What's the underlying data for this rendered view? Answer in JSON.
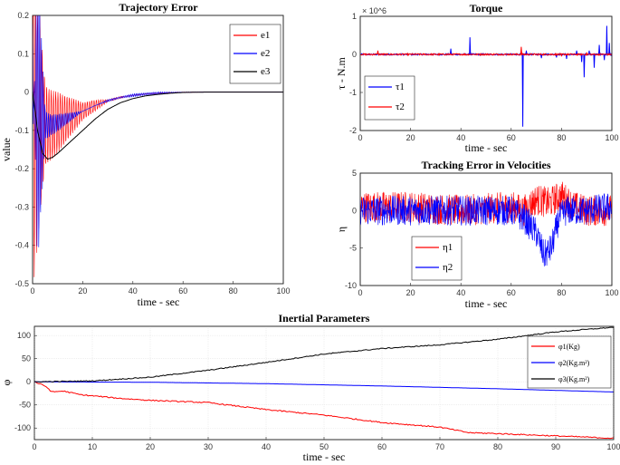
{
  "chart_data": [
    {
      "type": "line",
      "title": "Trajectory Error",
      "xlabel": "time - sec",
      "ylabel": "value",
      "xlim": [
        0,
        100
      ],
      "ylim": [
        -0.5,
        0.2
      ],
      "xticks": [
        "0",
        "20",
        "40",
        "60",
        "80",
        "100"
      ],
      "yticks": [
        "0.2",
        "0.1",
        "0",
        "-0.1",
        "-0.2",
        "-0.3",
        "-0.4",
        "-0.5"
      ],
      "legend_position": "top-right",
      "series": [
        {
          "name": "e1",
          "color": "#ff0000",
          "behavior": "damped oscillation",
          "points": [
            [
              0,
              -0.46
            ],
            [
              5,
              -0.18
            ],
            [
              10,
              -0.15
            ],
            [
              20,
              -0.07
            ],
            [
              30,
              -0.025
            ],
            [
              40,
              -0.008
            ],
            [
              50,
              -0.002
            ],
            [
              60,
              0
            ],
            [
              100,
              0
            ]
          ]
        },
        {
          "name": "e2",
          "color": "#0000ff",
          "behavior": "damped oscillation",
          "points": [
            [
              0,
              0.16
            ],
            [
              2,
              -0.42
            ],
            [
              5,
              -0.12
            ],
            [
              10,
              -0.1
            ],
            [
              20,
              -0.05
            ],
            [
              30,
              -0.02
            ],
            [
              40,
              -0.005
            ],
            [
              50,
              0
            ],
            [
              100,
              0
            ]
          ]
        },
        {
          "name": "e3",
          "color": "#000000",
          "points": [
            [
              0,
              0
            ],
            [
              2,
              -0.1
            ],
            [
              4,
              -0.16
            ],
            [
              6,
              -0.175
            ],
            [
              8,
              -0.17
            ],
            [
              10,
              -0.16
            ],
            [
              15,
              -0.13
            ],
            [
              20,
              -0.1
            ],
            [
              25,
              -0.07
            ],
            [
              30,
              -0.045
            ],
            [
              35,
              -0.028
            ],
            [
              40,
              -0.017
            ],
            [
              45,
              -0.01
            ],
            [
              50,
              -0.006
            ],
            [
              55,
              -0.003
            ],
            [
              60,
              -0.001
            ],
            [
              70,
              0
            ],
            [
              100,
              0
            ]
          ]
        }
      ]
    },
    {
      "type": "line",
      "title": "Torque",
      "xlabel": "time - sec",
      "ylabel": "τ - N.m",
      "exponent": "× 10^6",
      "xlim": [
        0,
        100
      ],
      "ylim": [
        -2,
        1
      ],
      "xticks": [
        "0",
        "20",
        "40",
        "60",
        "80",
        "100"
      ],
      "yticks": [
        "1",
        "0",
        "-1",
        "-2"
      ],
      "legend_position": "bottom-left",
      "series": [
        {
          "name": "τ1",
          "color": "#0000ff",
          "spikes": [
            [
              36,
              0.15
            ],
            [
              43.5,
              0.45
            ],
            [
              64.5,
              -1.9
            ],
            [
              66,
              0.1
            ],
            [
              72,
              -0.1
            ],
            [
              78,
              -0.08
            ],
            [
              82,
              -0.12
            ],
            [
              86,
              0.1
            ],
            [
              88,
              -0.2
            ],
            [
              89,
              -0.6
            ],
            [
              91,
              0.1
            ],
            [
              93,
              -0.35
            ],
            [
              95,
              0.25
            ],
            [
              97,
              -0.15
            ],
            [
              98,
              0.75
            ],
            [
              99,
              0.3
            ]
          ]
        },
        {
          "name": "τ2",
          "color": "#ff0000",
          "spikes": [
            [
              7,
              0.1
            ],
            [
              64,
              0.2
            ],
            [
              80,
              -0.05
            ],
            [
              90,
              0.05
            ]
          ]
        }
      ]
    },
    {
      "type": "line",
      "title": "Tracking Error in Velocities",
      "xlabel": "time - sec",
      "ylabel": "η",
      "xlim": [
        0,
        100
      ],
      "ylim": [
        -10,
        5
      ],
      "xticks": [
        "0",
        "20",
        "40",
        "60",
        "80",
        "100"
      ],
      "yticks": [
        "5",
        "0",
        "-5",
        "-10"
      ],
      "legend_position": "bottom-left",
      "series": [
        {
          "name": "η1",
          "color": "#ff0000",
          "behavior": "noisy",
          "trend": [
            [
              0,
              0.5
            ],
            [
              20,
              0.5
            ],
            [
              40,
              0
            ],
            [
              60,
              0.5
            ],
            [
              65,
              0
            ],
            [
              70,
              1.5
            ],
            [
              75,
              1
            ],
            [
              80,
              2
            ],
            [
              85,
              0.5
            ],
            [
              90,
              0
            ],
            [
              100,
              0
            ]
          ]
        },
        {
          "name": "η2",
          "color": "#0000ff",
          "behavior": "noisy",
          "trend": [
            [
              0,
              0
            ],
            [
              20,
              0
            ],
            [
              40,
              0
            ],
            [
              60,
              0
            ],
            [
              65,
              -1
            ],
            [
              70,
              -3
            ],
            [
              73,
              -6
            ],
            [
              76,
              -5
            ],
            [
              79,
              -1
            ],
            [
              82,
              0
            ],
            [
              90,
              0
            ],
            [
              100,
              0.5
            ]
          ]
        }
      ]
    },
    {
      "type": "line",
      "title": "Inertial Parameters",
      "xlabel": "time - sec",
      "ylabel": "φ",
      "xlim": [
        0,
        100
      ],
      "ylim": [
        -125,
        120
      ],
      "xticks": [
        "0",
        "10",
        "20",
        "30",
        "40",
        "50",
        "60",
        "70",
        "80",
        "90",
        "100"
      ],
      "yticks": [
        "100",
        "50",
        "0",
        "-50",
        "-100"
      ],
      "grid": true,
      "legend_position": "right",
      "series": [
        {
          "name": "φ1(Kg)",
          "color": "#ff0000",
          "points": [
            [
              0,
              0
            ],
            [
              2,
              -10
            ],
            [
              3,
              -22
            ],
            [
              5,
              -20
            ],
            [
              8,
              -28
            ],
            [
              15,
              -36
            ],
            [
              20,
              -40
            ],
            [
              30,
              -45
            ],
            [
              40,
              -60
            ],
            [
              50,
              -72
            ],
            [
              60,
              -88
            ],
            [
              70,
              -98
            ],
            [
              75,
              -110
            ],
            [
              80,
              -112
            ],
            [
              90,
              -117
            ],
            [
              100,
              -122
            ]
          ]
        },
        {
          "name": "φ2(Kg.m²)",
          "color": "#0000ff",
          "points": [
            [
              0,
              0
            ],
            [
              20,
              -1
            ],
            [
              40,
              -4
            ],
            [
              60,
              -9
            ],
            [
              80,
              -15
            ],
            [
              100,
              -22
            ]
          ]
        },
        {
          "name": "φ3(Kg.m²)",
          "color": "#000000",
          "points": [
            [
              0,
              0
            ],
            [
              10,
              2
            ],
            [
              20,
              10
            ],
            [
              30,
              25
            ],
            [
              40,
              42
            ],
            [
              50,
              60
            ],
            [
              60,
              72
            ],
            [
              70,
              80
            ],
            [
              80,
              92
            ],
            [
              90,
              108
            ],
            [
              100,
              118
            ]
          ]
        }
      ]
    }
  ]
}
